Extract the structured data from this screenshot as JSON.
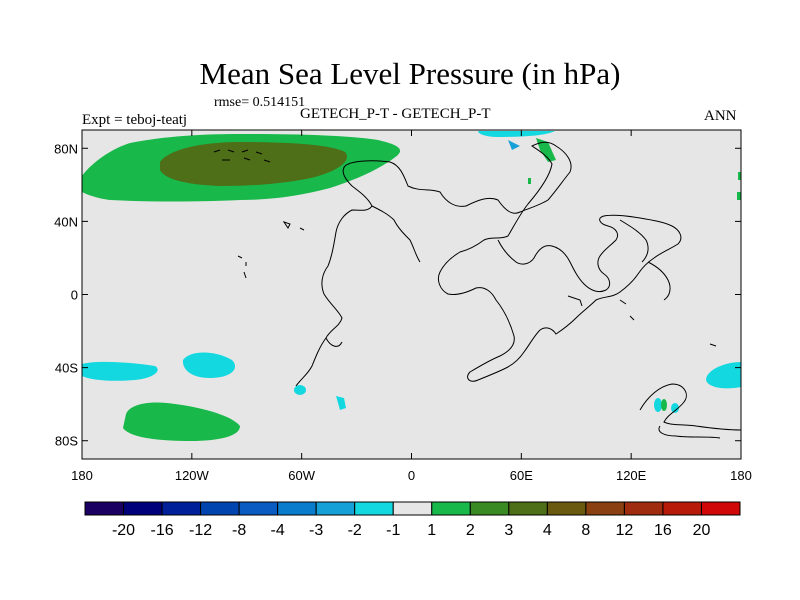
{
  "title": "Mean Sea Level Pressure (in hPa)",
  "rmse": "rmse= 0.514151",
  "expt": "Expt = teboj-teatj",
  "center_label": "GETECH_P-T - GETECH_P-T",
  "season": "ANN",
  "y_axis": {
    "ticks": [
      {
        "lat": 80,
        "label": "80N"
      },
      {
        "lat": 40,
        "label": "40N"
      },
      {
        "lat": 0,
        "label": "0"
      },
      {
        "lat": -40,
        "label": "40S"
      },
      {
        "lat": -80,
        "label": "80S"
      }
    ]
  },
  "x_axis": {
    "ticks": [
      {
        "lon": -180,
        "label": "180"
      },
      {
        "lon": -120,
        "label": "120W"
      },
      {
        "lon": -60,
        "label": "60W"
      },
      {
        "lon": 0,
        "label": "0"
      },
      {
        "lon": 60,
        "label": "60E"
      },
      {
        "lon": 120,
        "label": "120E"
      },
      {
        "lon": 180,
        "label": "180"
      }
    ]
  },
  "colorbar": {
    "colors": [
      "#1a0060",
      "#00007a",
      "#00209a",
      "#0044b0",
      "#0a5cc2",
      "#0a7ccc",
      "#16a0d8",
      "#14d8e0",
      "#e6e6e6",
      "#18b84a",
      "#3a8a24",
      "#4e6e18",
      "#6a5a10",
      "#8a4010",
      "#a02c10",
      "#b81a0a",
      "#d00808"
    ],
    "labels": [
      "-20",
      "-16",
      "-12",
      "-8",
      "-4",
      "-3",
      "-2",
      "-1",
      "1",
      "2",
      "3",
      "4",
      "8",
      "12",
      "16",
      "20"
    ]
  },
  "colors": {
    "background": "#e6e6e6",
    "green_light": "#18b84a",
    "green_mid": "#3a8a24",
    "green_dark": "#4e6e18",
    "cyan": "#14d8e0",
    "blue_light": "#16a0d8"
  }
}
